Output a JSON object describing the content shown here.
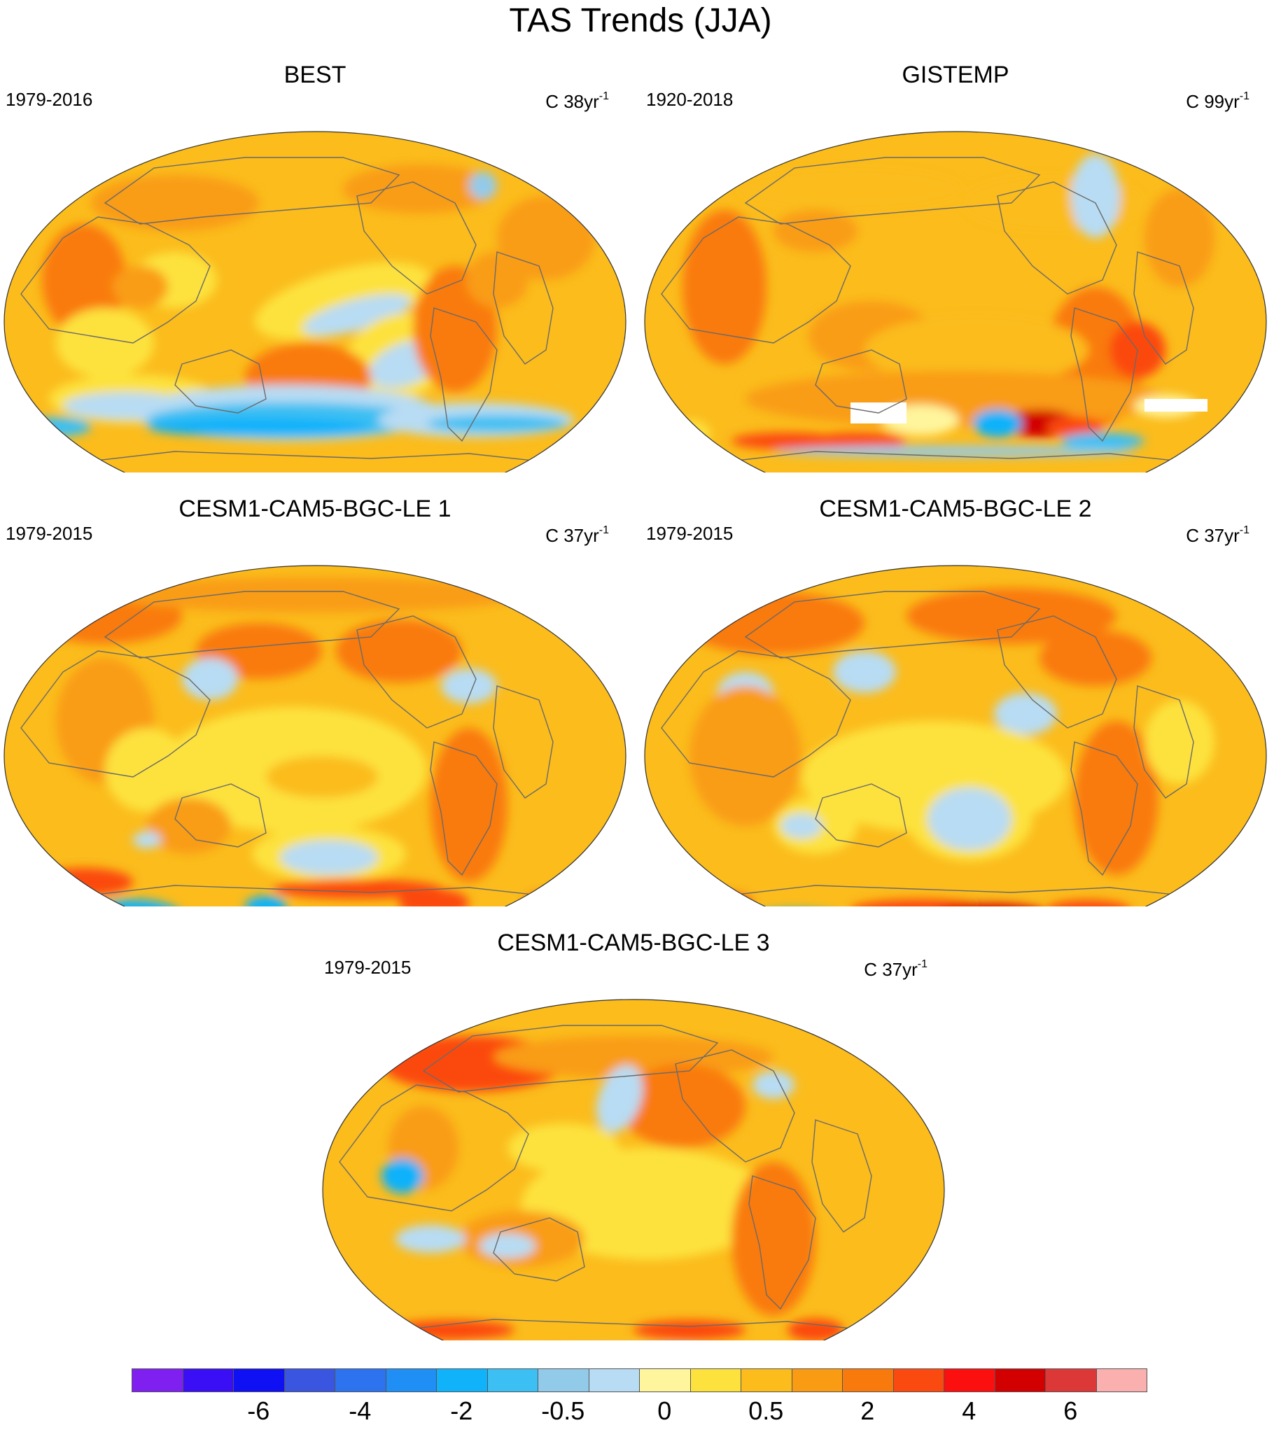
{
  "figure": {
    "title": "TAS Trends (JJA)"
  },
  "panels": [
    {
      "name": "BEST",
      "period": "1979-2016",
      "units_prefix": "C 38yr",
      "units_exp": "-1",
      "style": "best"
    },
    {
      "name": "GISTEMP",
      "period": "1920-2018",
      "units_prefix": "C 99yr",
      "units_exp": "-1",
      "style": "gistemp"
    },
    {
      "name": "CESM1-CAM5-BGC-LE 1",
      "period": "1979-2015",
      "units_prefix": "C 37yr",
      "units_exp": "-1",
      "style": "le1"
    },
    {
      "name": "CESM1-CAM5-BGC-LE 2",
      "period": "1979-2015",
      "units_prefix": "C 37yr",
      "units_exp": "-1",
      "style": "le2"
    },
    {
      "name": "CESM1-CAM5-BGC-LE 3",
      "period": "1979-2015",
      "units_prefix": "C 37yr",
      "units_exp": "-1",
      "style": "le3"
    }
  ],
  "colorbar": {
    "colors": [
      "#7f1ff0",
      "#3a0ff5",
      "#1010f5",
      "#3a56e0",
      "#2d72ee",
      "#1f8ef5",
      "#10b2fa",
      "#3cbff2",
      "#92cbea",
      "#b8dcf3",
      "#fff59d",
      "#fde23e",
      "#fbbc1c",
      "#f99c14",
      "#f97a0c",
      "#fb4a10",
      "#fb0f0f",
      "#d20000",
      "#dd3838",
      "#fbb0b0"
    ],
    "tick_labels": [
      "-6",
      "-4",
      "-2",
      "-0.5",
      "0",
      "0.5",
      "2",
      "4",
      "6"
    ]
  }
}
